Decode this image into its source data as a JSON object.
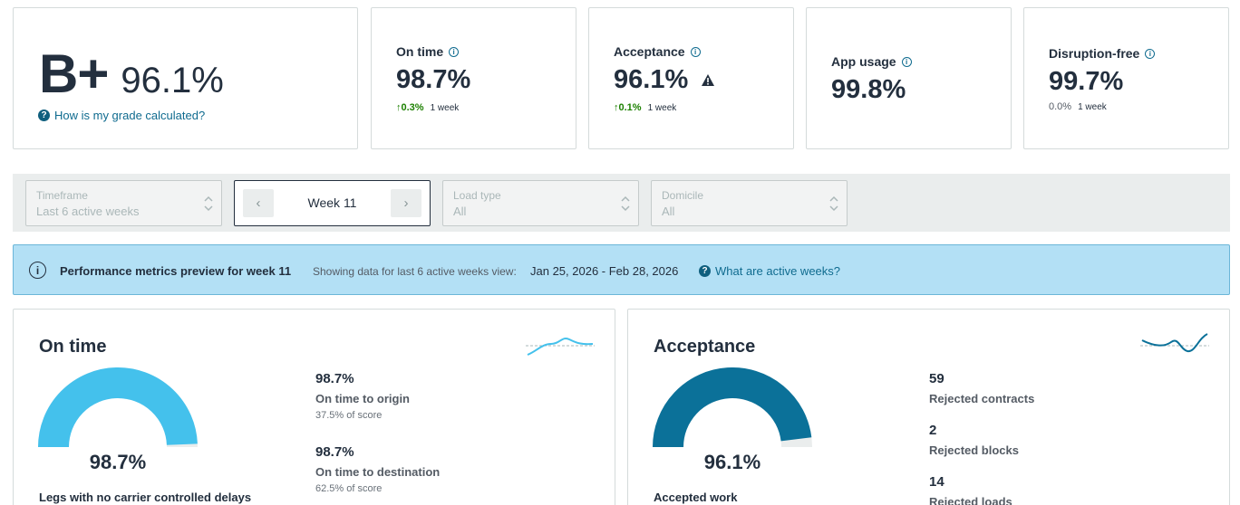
{
  "grade": {
    "letter": "B+",
    "percent": "96.1%",
    "help_link": "How is my grade calculated?"
  },
  "metrics": [
    {
      "title": "On time",
      "value": "98.7%",
      "change": "0.3%",
      "period": "1 week",
      "direction": "up",
      "warning": false
    },
    {
      "title": "Acceptance",
      "value": "96.1%",
      "change": "0.1%",
      "period": "1 week",
      "direction": "up",
      "warning": true
    },
    {
      "title": "App usage",
      "value": "99.8%",
      "change": "",
      "period": "",
      "direction": "none",
      "warning": false
    },
    {
      "title": "Disruption-free",
      "value": "99.7%",
      "change": "0.0%",
      "period": "1 week",
      "direction": "flat",
      "warning": false
    }
  ],
  "filters": {
    "timeframe": {
      "label": "Timeframe",
      "value": "Last 6 active weeks"
    },
    "week": {
      "value": "Week 11"
    },
    "load_type": {
      "label": "Load type",
      "value": "All"
    },
    "domicile": {
      "label": "Domicile",
      "value": "All"
    }
  },
  "banner": {
    "title": "Performance metrics preview for week 11",
    "subtitle": "Showing data for last 6 active weeks view:",
    "range": "Jan 25, 2026 - Feb 28, 2026",
    "link": "What are active weeks?"
  },
  "panels": {
    "on_time": {
      "title": "On time",
      "gauge_value": "98.7%",
      "gauge_fraction": 0.987,
      "gauge_color": "#44c1ec",
      "caption": "Legs with no carrier controlled delays",
      "stats": [
        {
          "value": "98.7%",
          "label": "On time to origin",
          "sub": "37.5% of score"
        },
        {
          "value": "98.7%",
          "label": "On time to destination",
          "sub": "62.5% of score"
        }
      ]
    },
    "acceptance": {
      "title": "Acceptance",
      "gauge_value": "96.1%",
      "gauge_fraction": 0.961,
      "gauge_color": "#0b7199",
      "caption": "Accepted work",
      "stats": [
        {
          "value": "59",
          "label": "Rejected contracts"
        },
        {
          "value": "2",
          "label": "Rejected blocks"
        },
        {
          "value": "14",
          "label": "Rejected loads"
        }
      ]
    }
  },
  "colors": {
    "accent_link": "#0f6b8f",
    "positive": "#1d8102",
    "banner_bg": "#b3e0f5"
  },
  "icons": {
    "help": "question-circle-icon",
    "info": "info-icon",
    "warning": "warning-triangle-icon",
    "chevron": "chevron-up-down-icon"
  }
}
